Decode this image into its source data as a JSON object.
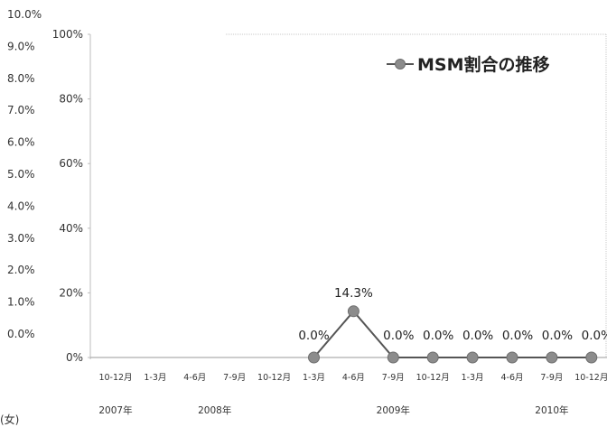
{
  "chart_data": {
    "type": "line",
    "categories": [
      "10-12月",
      "1-3月",
      "4-6月",
      "7-9月",
      "10-12月",
      "1-3月",
      "4-6月",
      "7-9月",
      "10-12月",
      "1-3月",
      "4-6月",
      "7-9月",
      "10-12月"
    ],
    "year_labels": [
      {
        "label": "2007年",
        "category_index": 0
      },
      {
        "label": "2008年",
        "category_index": 2.5
      },
      {
        "label": "2009年",
        "category_index": 7
      },
      {
        "label": "2010年",
        "category_index": 11
      }
    ],
    "series": [
      {
        "name": "MSM割合の推移",
        "values": [
          null,
          null,
          null,
          null,
          null,
          0.0,
          14.3,
          0.0,
          0.0,
          0.0,
          0.0,
          0.0,
          0.0
        ],
        "data_labels": [
          "",
          "",
          "",
          "",
          "",
          "0.0%",
          "14.3%",
          "0.0%",
          "0.0%",
          "0.0%",
          "0.0%",
          "0.0%",
          "0.0%"
        ],
        "line_color": "#555555",
        "marker_color": "#8c8c8c"
      }
    ],
    "ylim": [
      0,
      100
    ],
    "y_ticks": [
      {
        "value": 0,
        "label": "0%"
      },
      {
        "value": 20,
        "label": "20%"
      },
      {
        "value": 40,
        "label": "40%"
      },
      {
        "value": 60,
        "label": "60%"
      },
      {
        "value": 80,
        "label": "80%"
      },
      {
        "value": 100,
        "label": "100%"
      }
    ],
    "secondary_axis_labels": [
      "10.0%",
      "9.0%",
      "8.0%",
      "7.0%",
      "6.0%",
      "5.0%",
      "4.0%",
      "3.0%",
      "2.0%",
      "1.0%",
      "0.0%"
    ],
    "legend_position": "top-right",
    "grid": false,
    "corner_note": "(女)"
  }
}
